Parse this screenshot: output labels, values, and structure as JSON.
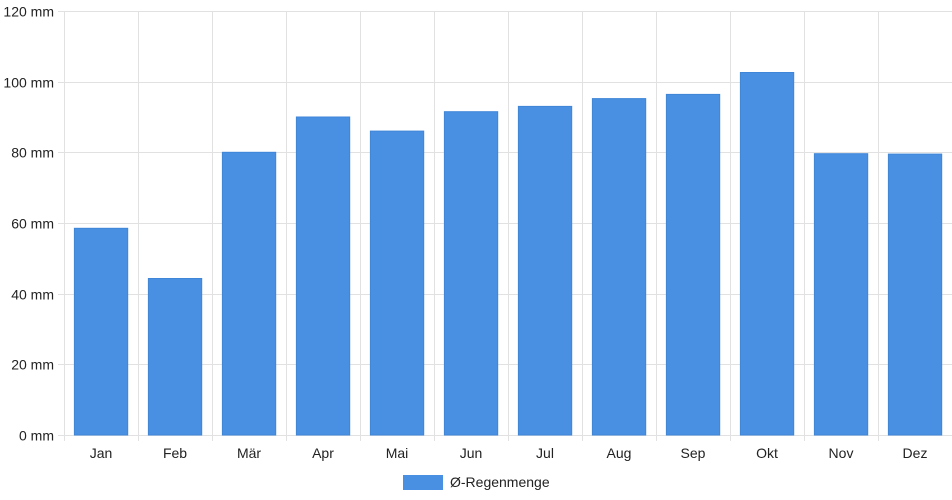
{
  "chart_data": {
    "type": "bar",
    "categories": [
      "Jan",
      "Feb",
      "Mär",
      "Apr",
      "Mai",
      "Jun",
      "Jul",
      "Aug",
      "Sep",
      "Okt",
      "Nov",
      "Dez"
    ],
    "series": [
      {
        "name": "Ø-Regenmenge",
        "color": "#4a90e2",
        "values": [
          58.5,
          44.3,
          80.0,
          90.0,
          86.0,
          91.5,
          93.0,
          95.2,
          96.4,
          102.6,
          79.6,
          79.5
        ]
      }
    ],
    "ylim": [
      0,
      120
    ],
    "yticks": [
      0,
      20,
      40,
      60,
      80,
      100,
      120
    ],
    "ytick_labels": [
      "0 mm",
      "20 mm",
      "40 mm",
      "60 mm",
      "80 mm",
      "100 mm",
      "120 mm"
    ],
    "grid": true,
    "legend_position": "bottom-center"
  }
}
